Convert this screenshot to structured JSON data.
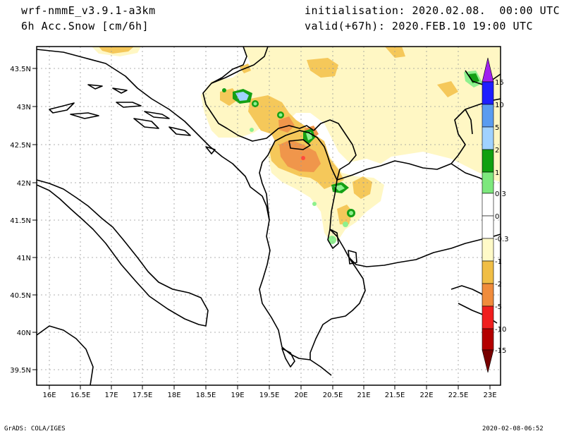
{
  "header": {
    "model": "wrf-nmmE_v3.9.1-a3km",
    "field": "6h Acc.Snow [cm/6h]",
    "init": "initialisation: 2020.02.08.  00:00 UTC",
    "valid": "valid(+67h): 2020.FEB.10 19:00 UTC"
  },
  "footer": {
    "credit": "GrADS: COLA/IGES",
    "timestamp": "2020-02-08-06:52"
  },
  "map": {
    "lon_range": [
      15.8,
      23.1
    ],
    "lat_range": [
      39.35,
      43.75
    ],
    "lon_ticks": [
      "16E",
      "16.5E",
      "17E",
      "17.5E",
      "18E",
      "18.5E",
      "19E",
      "19.5E",
      "20E",
      "20.5E",
      "21E",
      "21.5E",
      "22E",
      "22.5E",
      "23E"
    ],
    "lat_ticks": [
      "43.5N",
      "43N",
      "42.5N",
      "42N",
      "41.5N",
      "41N",
      "40.5N",
      "40N",
      "39.5N"
    ]
  },
  "legend": {
    "labels": [
      "15",
      "10",
      "5",
      "2",
      "1",
      "0.3",
      "0",
      "-0.3",
      "-1",
      "-2",
      "-5",
      "-10",
      "-15"
    ],
    "colors": [
      "#a020f0",
      "#1e1eff",
      "#5a9cf0",
      "#a0d2ff",
      "#10a010",
      "#7de87d",
      "#ffffff",
      "#ffffff",
      "#fffac8",
      "#f0be46",
      "#f08c3c",
      "#f01e1e",
      "#b40000",
      "#780000"
    ]
  },
  "colors": {
    "snow_light": "#fff7c4",
    "snow_mid": "#f5c85a",
    "snow_high": "#f0964b",
    "snow_max": "#ff4b3c",
    "green_light": "#8ef08e",
    "green_dark": "#14a014"
  }
}
